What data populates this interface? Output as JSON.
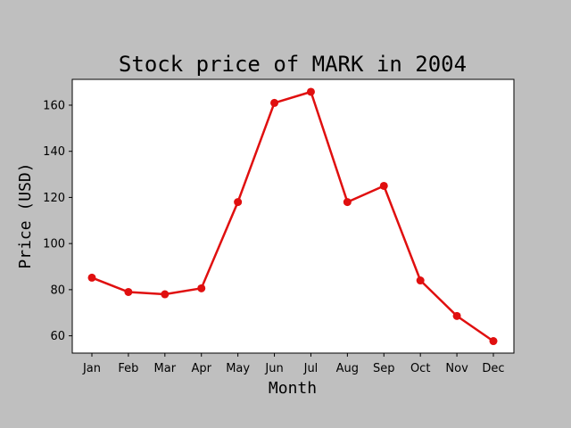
{
  "chart_data": {
    "type": "line",
    "title": "Stock price of MARK in 2004",
    "xlabel": "Month",
    "ylabel": "Price (USD)",
    "categories": [
      "Jan",
      "Feb",
      "Mar",
      "Apr",
      "May",
      "Jun",
      "Jul",
      "Aug",
      "Sep",
      "Oct",
      "Nov",
      "Dec"
    ],
    "series": [
      {
        "values": [
          85.2,
          79.0,
          78.0,
          80.6,
          118.0,
          161.0,
          165.8,
          118.0,
          125.0,
          84.0,
          68.6,
          57.7
        ],
        "color": "#e00f0f"
      }
    ],
    "yticks": [
      60,
      80,
      100,
      120,
      140,
      160
    ],
    "ylim": [
      52.5,
      171.2
    ],
    "grid": false,
    "legend": false,
    "colors": {
      "background": "#bfbfbf",
      "plot_background": "#ffffff",
      "line": "#e00f0f"
    }
  }
}
